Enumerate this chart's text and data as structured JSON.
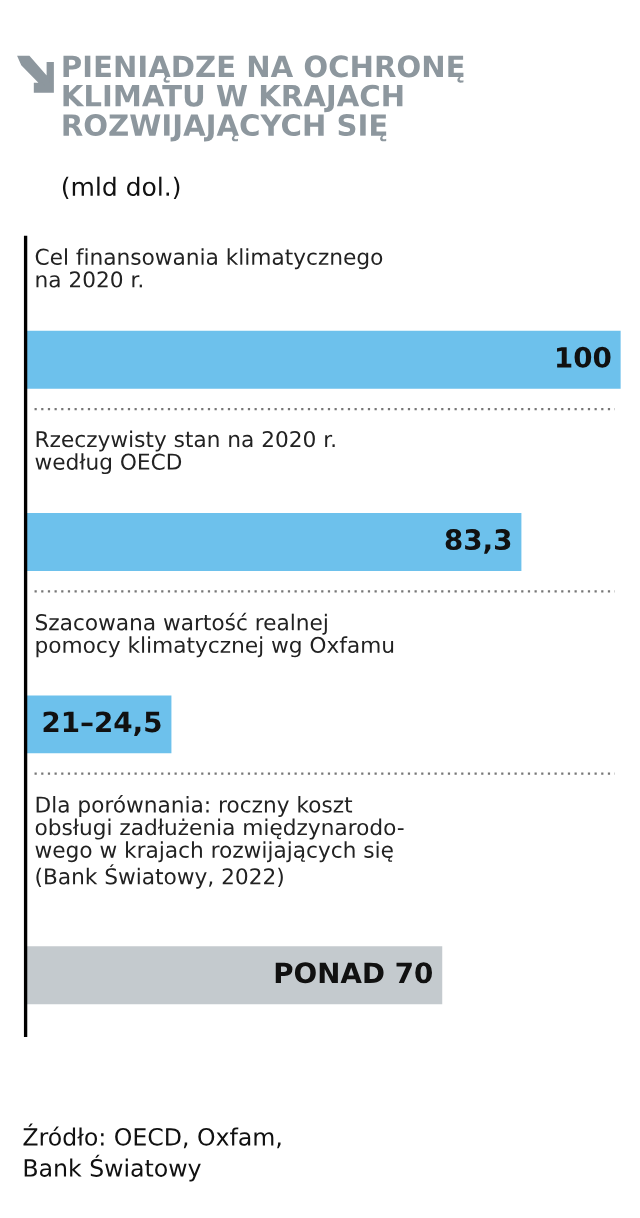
{
  "chart_data": {
    "type": "bar",
    "orientation": "horizontal",
    "title": "PIENIĄDZE NA OCHRONĘ\nKLIMATU W KRAJACH\nROZWIJAJĄCYCH SIĘ",
    "subtitle": "(mld dol.)",
    "categories": [
      "Cel finansowania klimatycznego\nna 2020 r.",
      "Rzeczywisty stan na 2020 r.\nwedług OECD",
      "Szacowana wartość realnej\npomocy klimatycznej wg Oxfamu",
      "Dla porównania: roczny koszt\nobsługi zadłużenia międzynarodo-\nwego w krajach rozwijających się\n(Bank Światowy, 2022)"
    ],
    "values": [
      100,
      83.3,
      24.5,
      70
    ],
    "colors": [
      "#6dc1ec",
      "#6dc1ec",
      "#6dc1ec",
      "#c4cace"
    ],
    "value_labels": [
      "100",
      "83,3",
      "21–24,5",
      "PONAD 70"
    ],
    "xlim": [
      0,
      100
    ],
    "annotations": [
      "Źródło: OECD, Oxfam,\nBank Światowy"
    ]
  }
}
